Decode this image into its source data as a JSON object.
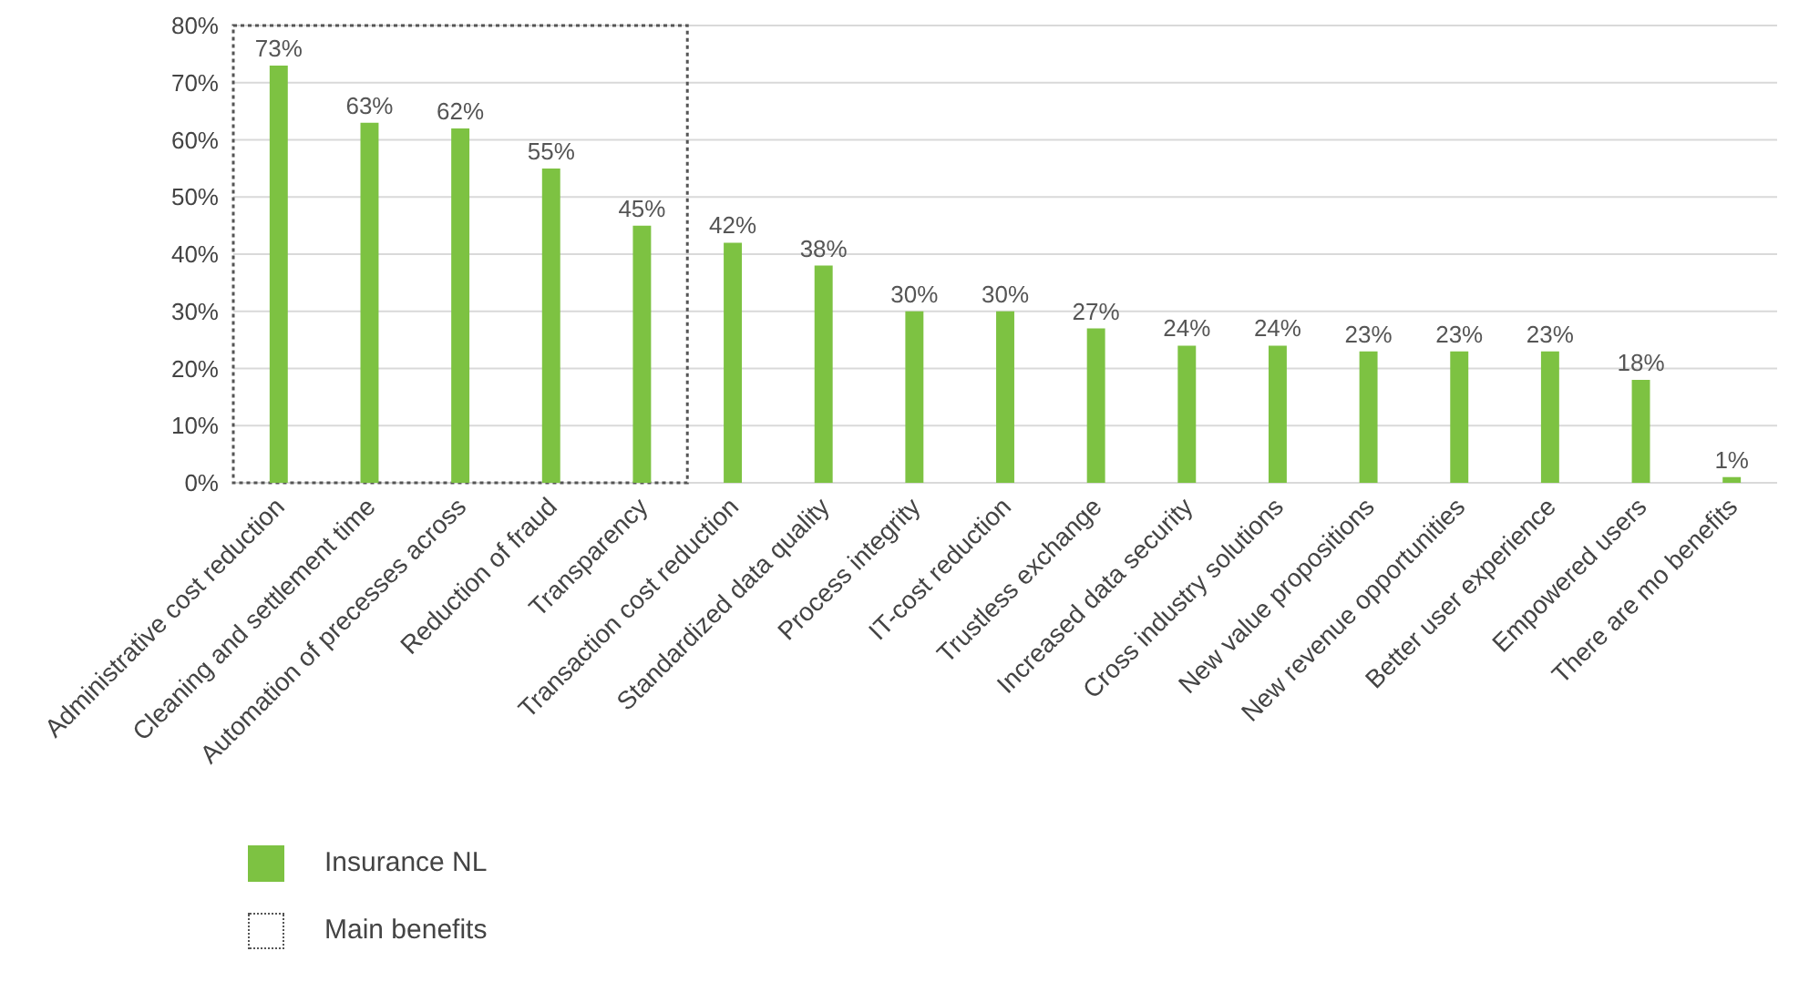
{
  "chart_data": {
    "type": "bar",
    "categories": [
      "Administrative cost reduction",
      "Cleaning and settlement time",
      "Automation of precesses across",
      "Reduction of fraud",
      "Transparency",
      "Transaction cost reduction",
      "Standardized data quality",
      "Process integrity",
      "IT-cost reduction",
      "Trustless exchange",
      "Increased data security",
      "Cross industry solutions",
      "New value propositions",
      "New revenue opportunities",
      "Better user experience",
      "Empowered users",
      "There are mo benefits"
    ],
    "series": [
      {
        "name": "Insurance NL",
        "color": "#7dc242",
        "values": [
          73,
          63,
          62,
          55,
          45,
          42,
          38,
          30,
          30,
          27,
          24,
          24,
          23,
          23,
          23,
          18,
          1
        ],
        "value_labels": [
          "73%",
          "63%",
          "62%",
          "55%",
          "45%",
          "42%",
          "38%",
          "30%",
          "30%",
          "27%",
          "24%",
          "24%",
          "23%",
          "23%",
          "23%",
          "18%",
          "1%"
        ]
      }
    ],
    "ylim": [
      0,
      80
    ],
    "yticks": [
      {
        "value": 0,
        "label": "0%"
      },
      {
        "value": 10,
        "label": "10%"
      },
      {
        "value": 20,
        "label": "20%"
      },
      {
        "value": 30,
        "label": "30%"
      },
      {
        "value": 40,
        "label": "40%"
      },
      {
        "value": 50,
        "label": "50%"
      },
      {
        "value": 60,
        "label": "60%"
      },
      {
        "value": 70,
        "label": "70%"
      },
      {
        "value": 80,
        "label": "80%"
      }
    ],
    "grid": "y",
    "legend": "bottom left",
    "annotations": [
      "Main benefits"
    ]
  }
}
